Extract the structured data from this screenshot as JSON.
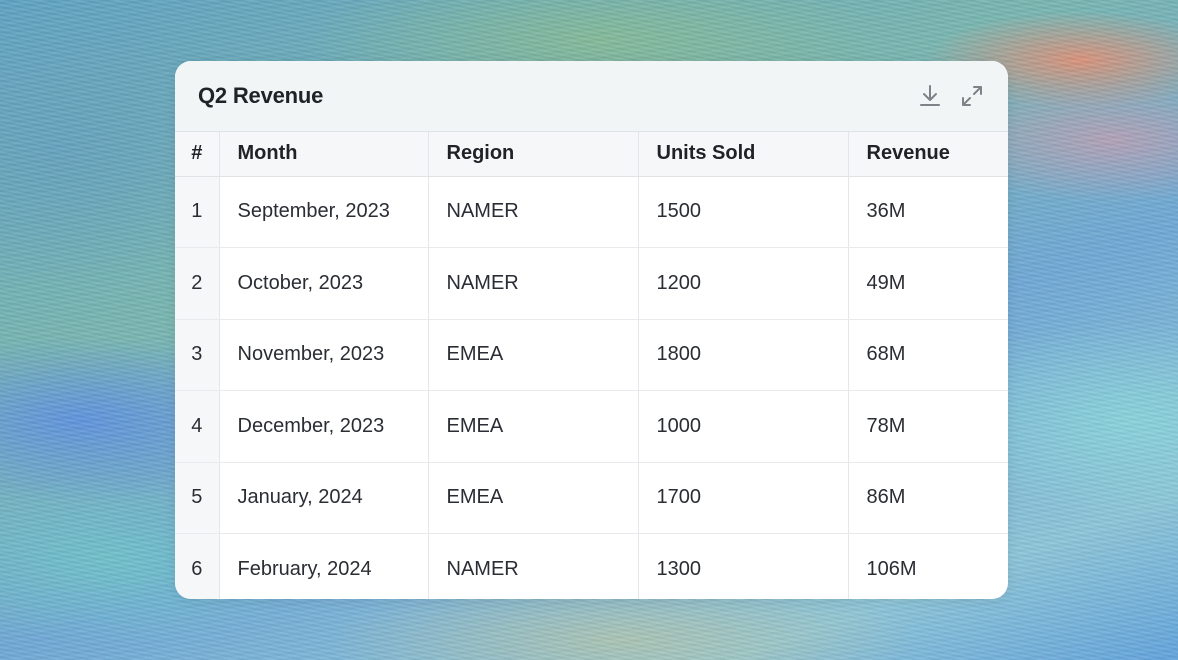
{
  "card": {
    "title": "Q2 Revenue",
    "actions": [
      {
        "icon": "download-icon"
      },
      {
        "icon": "expand-icon"
      }
    ]
  },
  "table": {
    "headers": [
      "#",
      "Month",
      "Region",
      "Units Sold",
      "Revenue"
    ],
    "rows": [
      [
        "1",
        "September, 2023",
        "NAMER",
        "1500",
        "36M"
      ],
      [
        "2",
        "October, 2023",
        "NAMER",
        "1200",
        "49M"
      ],
      [
        "3",
        "November, 2023",
        "EMEA",
        "1800",
        "68M"
      ],
      [
        "4",
        "December, 2023",
        "EMEA",
        "1000",
        "78M"
      ],
      [
        "5",
        "January, 2024",
        "EMEA",
        "1700",
        "86M"
      ],
      [
        "6",
        "February, 2024",
        "NAMER",
        "1300",
        "106M"
      ]
    ]
  },
  "colors": {
    "header_bg": "#f1f5f5",
    "title_text": "#1f2227",
    "icon": "#7d8389"
  }
}
